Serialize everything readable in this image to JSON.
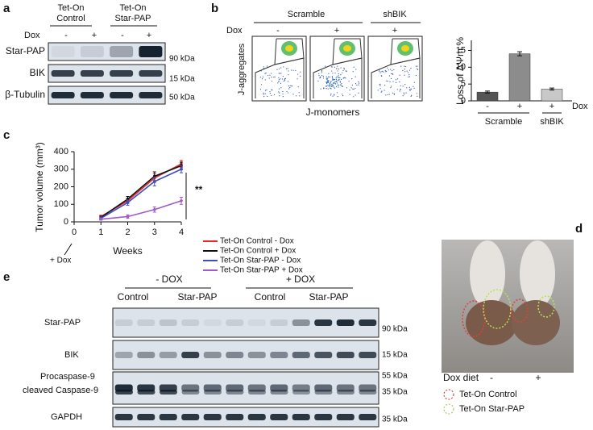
{
  "panels": {
    "a": {
      "label": "a",
      "columns": [
        {
          "lines": [
            "Tet-On",
            "Control"
          ]
        },
        {
          "lines": [
            "Tet-On",
            "Star-PAP"
          ]
        }
      ],
      "dox_label": "Dox",
      "dox": [
        "-",
        "+",
        "-",
        "+"
      ],
      "rows": [
        "Star-PAP",
        "BIK",
        "β-Tubulin"
      ],
      "markers": [
        "90 kDa",
        "15 kDa",
        "50 kDa"
      ]
    },
    "b": {
      "label": "b",
      "groups": [
        "Scramble",
        "shBIK"
      ],
      "dox_label": "Dox",
      "dox": [
        "-",
        "+",
        "+"
      ],
      "y_label": "J-aggregates",
      "x_label": "J-monomers"
    },
    "c": {
      "label": "c"
    },
    "d": {
      "label": "d",
      "diet_label": "Dox diet",
      "diet": [
        "-",
        "+"
      ],
      "legend": [
        "Tet-On Control",
        "Tet-On Star-PAP"
      ]
    },
    "e": {
      "label": "e",
      "conditions": [
        "- DOX",
        "+ DOX"
      ],
      "groups": [
        "Control",
        "Star-PAP",
        "Control",
        "Star-PAP"
      ],
      "rows": [
        "Star-PAP",
        "BIK",
        "Procaspase-9",
        "cleaved Caspase-9",
        "GAPDH"
      ],
      "markers": [
        "90 kDa",
        "15 kDa",
        "55 kDa",
        "35 kDa",
        "35 kDa"
      ]
    }
  },
  "chart_data": [
    {
      "type": "bar",
      "y_label": "Loss of ΔΨm %",
      "x_label": "Dox",
      "categories": [
        "-",
        "+",
        "+"
      ],
      "groups": [
        "Scramble",
        "shBIK"
      ],
      "values": [
        2.6,
        14,
        3.5
      ],
      "errors": [
        0.3,
        0.6,
        0.3
      ],
      "colors": [
        "#555555",
        "#8c8c8c",
        "#c8c8c8"
      ],
      "ylim": [
        0,
        18
      ],
      "yticks": [
        0,
        5,
        10,
        15
      ]
    },
    {
      "type": "line",
      "x_label": "Weeks",
      "y_label": "Tumor volume (mm³)",
      "x": [
        1,
        2,
        3,
        4
      ],
      "xlim": [
        0,
        4
      ],
      "xticks": [
        0,
        1,
        2,
        3,
        4
      ],
      "ylim": [
        0,
        400
      ],
      "yticks": [
        0,
        100,
        200,
        300,
        400
      ],
      "annotations": [
        "**",
        "+ Dox"
      ],
      "series": [
        {
          "name": "Tet-On Control - Dox",
          "color": "#e8262b",
          "values": [
            30,
            120,
            250,
            330
          ],
          "errors": [
            8,
            15,
            25,
            20
          ]
        },
        {
          "name": "Tet-On Control + Dox",
          "color": "#111111",
          "values": [
            25,
            130,
            260,
            320
          ],
          "errors": [
            8,
            15,
            25,
            20
          ]
        },
        {
          "name": "Tet-On Star-PAP - Dox",
          "color": "#3a4fc0",
          "values": [
            20,
            110,
            230,
            300
          ],
          "errors": [
            8,
            15,
            25,
            20
          ]
        },
        {
          "name": "Tet-On Star-PAP + Dox",
          "color": "#a15bc6",
          "values": [
            15,
            30,
            70,
            120
          ],
          "errors": [
            5,
            10,
            15,
            20
          ]
        }
      ]
    }
  ]
}
